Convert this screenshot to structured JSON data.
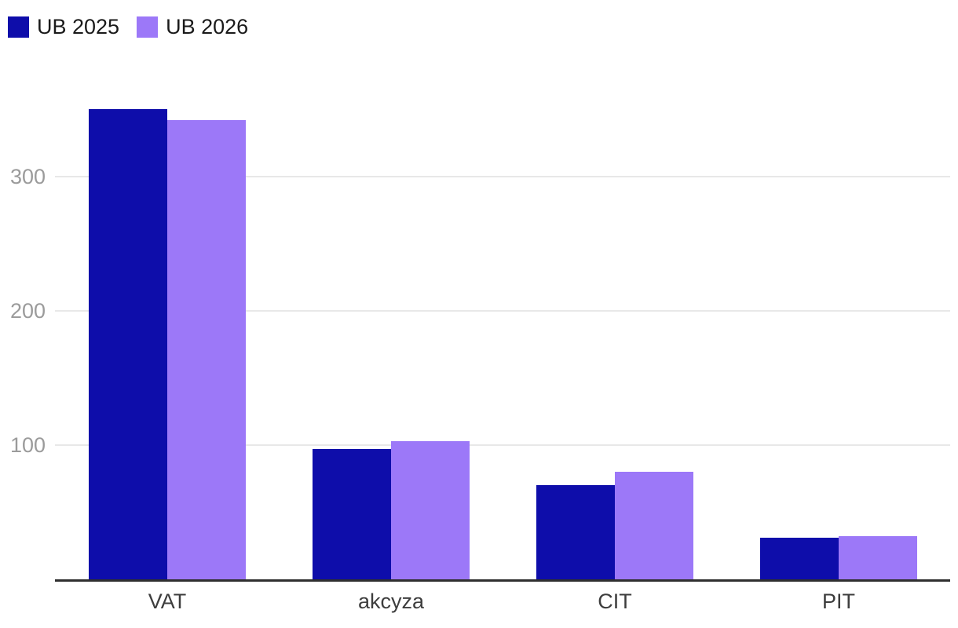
{
  "legend": {
    "items": [
      {
        "label": "UB 2025",
        "color": "#0e0daa"
      },
      {
        "label": "UB 2026",
        "color": "#9c78f8"
      }
    ]
  },
  "chart_data": {
    "type": "bar",
    "title": "",
    "xlabel": "",
    "ylabel": "",
    "categories": [
      "VAT",
      "akcyza",
      "CIT",
      "PIT"
    ],
    "series": [
      {
        "name": "UB 2025",
        "color": "#0e0daa",
        "values": [
          350,
          97,
          70,
          31
        ]
      },
      {
        "name": "UB 2026",
        "color": "#9c78f8",
        "values": [
          342,
          103,
          80,
          32
        ]
      }
    ],
    "yticks": [
      100,
      200,
      300
    ],
    "ylim": [
      0,
      360
    ],
    "grid": true,
    "legend_position": "top-left",
    "colors": {
      "gridline": "#e8e8e8",
      "axis_line": "#2f2f2f",
      "ytick_text": "#9b9b9b",
      "xtick_text": "#3d3d3d",
      "legend_text": "#1a1a1a"
    }
  }
}
